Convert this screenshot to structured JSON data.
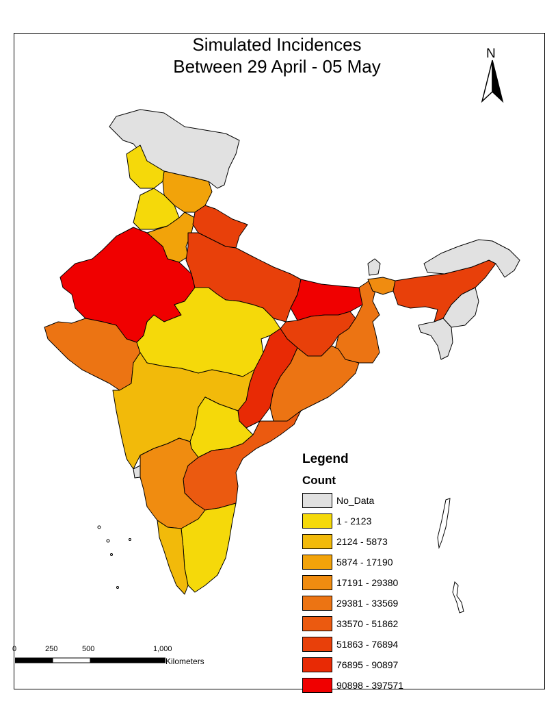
{
  "map": {
    "title_line1": "Simulated Incidences",
    "title_line2": "Between 29 April - 05 May",
    "north_label": "N"
  },
  "legend": {
    "title": "Legend",
    "field": "Count",
    "classes": [
      {
        "label": "No_Data",
        "color": "#e1e1e1"
      },
      {
        "label": "1 - 2123",
        "color": "#f5d90a"
      },
      {
        "label": "2124 - 5873",
        "color": "#f2ba0a"
      },
      {
        "label": "5874 - 17190",
        "color": "#f2a30a"
      },
      {
        "label": "17191 - 29380",
        "color": "#f08c10"
      },
      {
        "label": "29381 - 33569",
        "color": "#ec7413"
      },
      {
        "label": "33570 - 51862",
        "color": "#eb5a10"
      },
      {
        "label": "51863 - 76894",
        "color": "#e8400a"
      },
      {
        "label": "76895 - 90897",
        "color": "#e82a05"
      },
      {
        "label": "90898 - 397571",
        "color": "#f00000"
      }
    ]
  },
  "scale_bar": {
    "ticks": [
      "0",
      "250",
      "500",
      "1,000"
    ],
    "unit": "Kilometers"
  }
}
